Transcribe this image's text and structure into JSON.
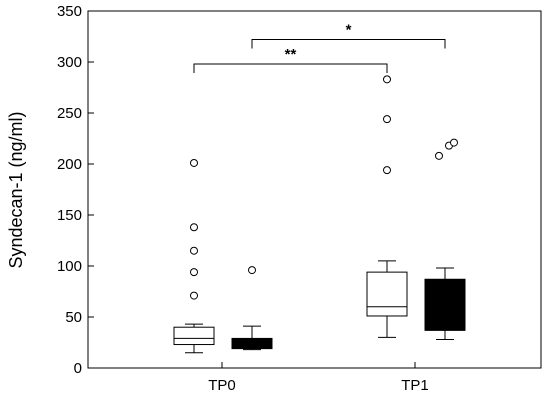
{
  "chart_data": {
    "type": "box",
    "title": "",
    "xlabel": "",
    "ylabel": "Syndecan-1 (ng/ml)",
    "ylim": [
      0,
      350
    ],
    "yticks": [
      0,
      50,
      100,
      150,
      200,
      250,
      300,
      350
    ],
    "categories": [
      "TP0",
      "TP1"
    ],
    "grid": false,
    "legend": "none",
    "series": [
      {
        "fill": "#ffffff",
        "boxes": [
          {
            "category": "TP0",
            "whisker_low": 15,
            "q1": 23,
            "median": 29,
            "q3": 40,
            "whisker_high": 43,
            "outliers": [
              71,
              94,
              115,
              138,
              201
            ]
          },
          {
            "category": "TP1",
            "whisker_low": 30,
            "q1": 51,
            "median": 60,
            "q3": 94,
            "whisker_high": 105,
            "outliers": [
              194,
              244,
              283
            ]
          }
        ]
      },
      {
        "fill": "#000000",
        "boxes": [
          {
            "category": "TP0",
            "whisker_low": 18,
            "q1": 19,
            "median": 26,
            "q3": 29,
            "whisker_high": 41,
            "outliers": [
              96
            ]
          },
          {
            "category": "TP1",
            "whisker_low": 28,
            "q1": 37,
            "median": 37,
            "q3": 87,
            "whisker_high": 98,
            "outliers": [
              208,
              218,
              221
            ]
          }
        ]
      }
    ],
    "annotations": [
      {
        "label": "**",
        "y": 298,
        "from": "TP0",
        "to": "TP1",
        "from_series": 0,
        "to_series": 0
      },
      {
        "label": "*",
        "y": 322,
        "from": "TP0",
        "to": "TP1",
        "from_series": 1,
        "to_series": 1
      }
    ]
  }
}
